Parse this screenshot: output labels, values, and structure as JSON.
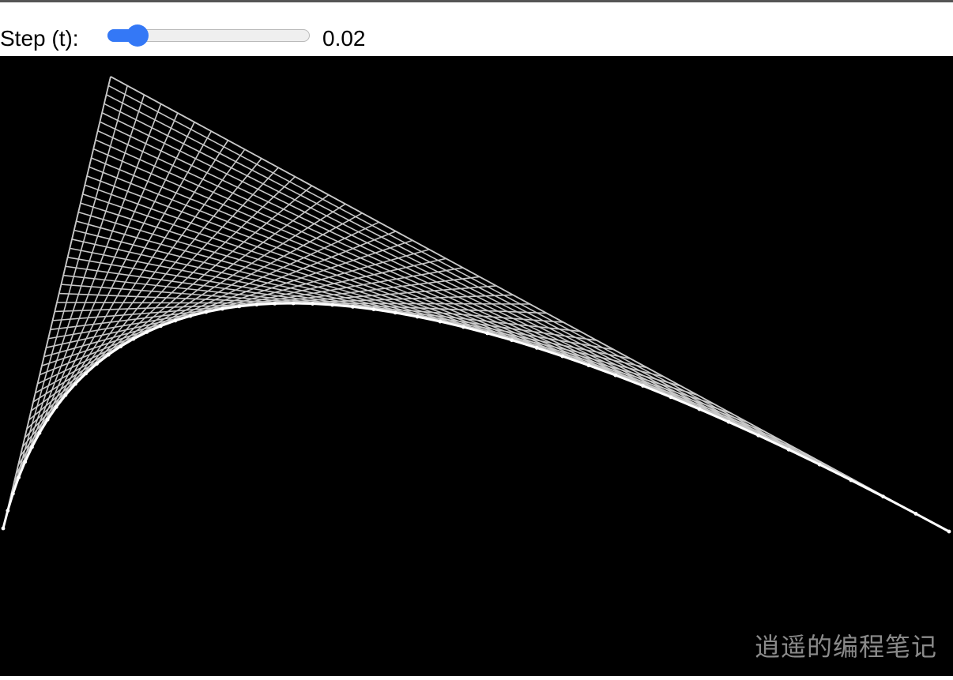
{
  "controls": {
    "step_label": "Step (t):",
    "step_value": "0.02",
    "slider_fraction": 0.15,
    "slider_color": "#3478f6"
  },
  "curve": {
    "control_points": [
      [
        4,
        598
      ],
      [
        140,
        26
      ],
      [
        1201,
        602
      ]
    ],
    "step": 0.02,
    "line_color": "#c8c8c8",
    "curve_color": "#ffffff"
  },
  "watermark": "逍遥的编程笔记"
}
